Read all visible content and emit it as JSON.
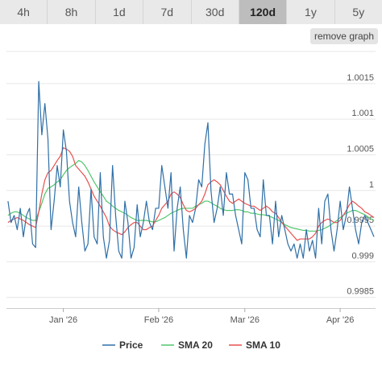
{
  "tabs": [
    {
      "label": "4h",
      "active": false
    },
    {
      "label": "8h",
      "active": false
    },
    {
      "label": "1d",
      "active": false
    },
    {
      "label": "7d",
      "active": false
    },
    {
      "label": "30d",
      "active": false
    },
    {
      "label": "120d",
      "active": true
    },
    {
      "label": "1y",
      "active": false
    },
    {
      "label": "5y",
      "active": false
    }
  ],
  "remove_graph_label": "remove graph",
  "chart_data": {
    "type": "line",
    "x": [
      1,
      2,
      3,
      4,
      5,
      6,
      7,
      8,
      9,
      10,
      11,
      12,
      13,
      14,
      15,
      16,
      17,
      18,
      19,
      20,
      21,
      22,
      23,
      24,
      25,
      26,
      27,
      28,
      29,
      30,
      31,
      32,
      33,
      34,
      35,
      36,
      37,
      38,
      39,
      40,
      41,
      42,
      43,
      44,
      45,
      46,
      47,
      48,
      49,
      50,
      51,
      52,
      53,
      54,
      55,
      56,
      57,
      58,
      59,
      60,
      61,
      62,
      63,
      64,
      65,
      66,
      67,
      68,
      69,
      70,
      71,
      72,
      73,
      74,
      75,
      76,
      77,
      78,
      79,
      80,
      81,
      82,
      83,
      84,
      85,
      86,
      87,
      88,
      89,
      90,
      91,
      92,
      93,
      94,
      95,
      96,
      97,
      98,
      99,
      100,
      101,
      102,
      103,
      104,
      105,
      106,
      107,
      108,
      109,
      110,
      111,
      112,
      113,
      114,
      115,
      116,
      117,
      118,
      119,
      120
    ],
    "x_ticks": [
      {
        "x": 19,
        "label": "Jan '26"
      },
      {
        "x": 50,
        "label": "Feb '26"
      },
      {
        "x": 78,
        "label": "Mar '26"
      },
      {
        "x": 109,
        "label": "Apr '26"
      }
    ],
    "xlim": [
      0.5,
      120.5
    ],
    "ylim": [
      0.99835,
      1.00195
    ],
    "yticks": [
      0.9985,
      0.999,
      0.9995,
      1,
      1.0005,
      1.001,
      1.0015
    ],
    "ytick_labels": [
      "0.9985",
      "0.999",
      "0.9995",
      "1",
      "1.0005",
      "1.001",
      "1.0015"
    ],
    "series": [
      {
        "name": "Price",
        "color": "#2f6fa7",
        "values": [
          0.99985,
          0.99955,
          0.99965,
          0.99945,
          0.99975,
          0.99935,
          0.99965,
          0.99975,
          0.99925,
          0.9992,
          1.00153,
          1.00078,
          1.00122,
          1.00072,
          0.99945,
          0.99985,
          1.00035,
          1.00005,
          1.00085,
          1.00055,
          0.99985,
          0.99955,
          0.99935,
          1.00005,
          0.99955,
          0.99915,
          0.99925,
          1.00002,
          0.99935,
          0.99925,
          1.00025,
          0.99935,
          0.99905,
          0.9993,
          1.00035,
          0.99965,
          0.99915,
          0.99905,
          0.99985,
          0.99955,
          0.99905,
          0.9992,
          0.9998,
          0.99935,
          0.99955,
          0.99985,
          0.99955,
          0.99945,
          0.99975,
          0.99975,
          1.00035,
          1.00005,
          0.99975,
          1.00025,
          0.99915,
          0.99975,
          1.00005,
          0.99945,
          0.99905,
          0.99965,
          0.99955,
          0.99975,
          1.00015,
          1.00005,
          1.00065,
          1.00095,
          1.0,
          0.99955,
          0.99975,
          1.00005,
          0.99965,
          1.00025,
          0.99995,
          0.99995,
          0.99965,
          0.99945,
          0.99925,
          1.00025,
          1.00015,
          0.99975,
          0.99975,
          0.99945,
          0.99935,
          1.00015,
          0.99965,
          0.99965,
          0.99925,
          0.99985,
          0.99935,
          0.99965,
          0.99945,
          0.99925,
          0.99915,
          0.99925,
          0.99905,
          0.99925,
          0.99905,
          0.99945,
          0.99915,
          0.9993,
          0.99905,
          0.99975,
          0.99925,
          0.99985,
          0.99995,
          0.99945,
          0.99915,
          0.99945,
          0.99985,
          0.99945,
          0.99965,
          1.00005,
          0.99975,
          0.99945,
          0.99925,
          0.99955,
          0.99965,
          0.99955,
          0.99945,
          0.99935
        ],
        "legend_label": "Price"
      },
      {
        "name": "SMA 20",
        "color": "#4fc76b",
        "values": [
          0.99965,
          0.99968,
          0.9997,
          0.9997,
          0.99968,
          0.99965,
          0.99962,
          0.9996,
          0.99958,
          0.99958,
          0.9997,
          0.99982,
          0.99995,
          1.00003,
          1.00005,
          1.00008,
          1.00012,
          1.00015,
          1.00022,
          1.00028,
          1.00032,
          1.00035,
          1.00038,
          1.00042,
          1.0004,
          1.00035,
          1.00028,
          1.0002,
          1.00012,
          1.00005,
          0.99998,
          0.99992,
          0.99985,
          0.99982,
          0.99978,
          0.99975,
          0.99972,
          0.9997,
          0.99968,
          0.99965,
          0.99962,
          0.9996,
          0.99958,
          0.99958,
          0.99958,
          0.99958,
          0.99957,
          0.99956,
          0.99956,
          0.99958,
          0.9996,
          0.99962,
          0.99965,
          0.99968,
          0.9997,
          0.99972,
          0.99974,
          0.99975,
          0.99975,
          0.99975,
          0.99975,
          0.99978,
          0.9998,
          0.99982,
          0.99985,
          0.99985,
          0.99983,
          0.9998,
          0.99978,
          0.99975,
          0.99973,
          0.99972,
          0.99972,
          0.99972,
          0.99973,
          0.99973,
          0.99972,
          0.9997,
          0.9997,
          0.99968,
          0.99968,
          0.99967,
          0.99966,
          0.99966,
          0.99965,
          0.99964,
          0.99962,
          0.9996,
          0.99958,
          0.99955,
          0.99952,
          0.9995,
          0.99948,
          0.99947,
          0.99946,
          0.99945,
          0.99944,
          0.99944,
          0.99943,
          0.99943,
          0.99943,
          0.99944,
          0.99945,
          0.99947,
          0.99949,
          0.99952,
          0.99955,
          0.99958,
          0.99962,
          0.99965,
          0.99968,
          0.9997,
          0.99972,
          0.99972,
          0.9997,
          0.99968,
          0.99966,
          0.99963,
          0.9996,
          0.99958
        ],
        "legend_label": "SMA 20"
      },
      {
        "name": "SMA 10",
        "color": "#e8504f",
        "values": [
          0.99955,
          0.99958,
          0.9996,
          0.99962,
          0.9996,
          0.99958,
          0.99955,
          0.99952,
          0.9995,
          0.99948,
          0.9997,
          0.99995,
          1.00015,
          1.00025,
          1.00028,
          1.00035,
          1.00042,
          1.00048,
          1.0006,
          1.00058,
          1.00055,
          1.00048,
          1.00035,
          1.0003,
          1.00025,
          1.0002,
          1.00012,
          1.00002,
          0.99992,
          0.99985,
          0.99978,
          0.9997,
          0.99962,
          0.9995,
          0.99945,
          0.99942,
          0.9994,
          0.99938,
          0.99942,
          0.99948,
          0.99952,
          0.99955,
          0.99955,
          0.9995,
          0.99945,
          0.99945,
          0.99948,
          0.9995,
          0.99958,
          0.99965,
          0.99975,
          0.9998,
          0.99985,
          0.99995,
          0.99998,
          0.99995,
          0.9999,
          0.9998,
          0.99972,
          0.9997,
          0.99972,
          0.99975,
          0.9998,
          0.99985,
          0.99995,
          1.00008,
          1.00012,
          1.00015,
          1.00012,
          1.00008,
          1.0,
          0.99992,
          0.99985,
          0.99982,
          0.99985,
          0.99988,
          0.99985,
          0.99982,
          0.9998,
          0.99978,
          0.99978,
          0.99975,
          0.99972,
          0.99975,
          0.99978,
          0.99975,
          0.9997,
          0.99968,
          0.99962,
          0.99955,
          0.9995,
          0.99945,
          0.9994,
          0.99935,
          0.9993,
          0.99932,
          0.99932,
          0.99932,
          0.99932,
          0.99935,
          0.9994,
          0.9995,
          0.99955,
          0.99958,
          0.9996,
          0.99958,
          0.99955,
          0.99955,
          0.99958,
          0.99965,
          0.99972,
          0.9998,
          0.99985,
          0.99982,
          0.99978,
          0.99975,
          0.9997,
          0.99968,
          0.99965,
          0.99962
        ],
        "legend_label": "SMA 10"
      }
    ],
    "grid": true,
    "legend_position": "bottom-center"
  }
}
